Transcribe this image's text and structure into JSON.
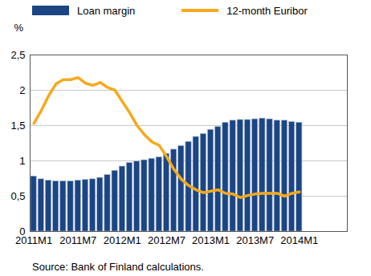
{
  "chart_data": {
    "type": "bar",
    "caption": "Source: Bank of Finland calculations.",
    "y_label": "%",
    "categories": [
      "2011M1",
      null,
      null,
      null,
      null,
      null,
      "2011M7",
      null,
      null,
      null,
      null,
      null,
      "2012M1",
      null,
      null,
      null,
      null,
      null,
      "2012M7",
      null,
      null,
      null,
      null,
      null,
      "2013M1",
      null,
      null,
      null,
      null,
      null,
      "2013M7",
      null,
      null,
      null,
      null,
      null,
      "2014M1",
      null,
      null,
      null,
      null,
      null,
      null
    ],
    "series": [
      {
        "name": "Loan margin",
        "type": "bar",
        "color": "#1b4584",
        "values": [
          0.78,
          0.74,
          0.72,
          0.71,
          0.71,
          0.71,
          0.72,
          0.73,
          0.74,
          0.76,
          0.8,
          0.86,
          0.92,
          0.97,
          0.99,
          1.01,
          1.03,
          1.05,
          1.1,
          1.16,
          1.21,
          1.27,
          1.34,
          1.38,
          1.44,
          1.48,
          1.54,
          1.57,
          1.58,
          1.58,
          1.59,
          1.6,
          1.59,
          1.57,
          1.57,
          1.55,
          1.54,
          null,
          null,
          null,
          null,
          null,
          null
        ]
      },
      {
        "name": "12-month Euribor",
        "type": "line",
        "color": "#f7a91c",
        "values": [
          1.53,
          1.71,
          1.92,
          2.09,
          2.15,
          2.15,
          2.18,
          2.1,
          2.07,
          2.11,
          2.04,
          2.0,
          1.84,
          1.68,
          1.5,
          1.37,
          1.27,
          1.22,
          1.06,
          0.88,
          0.74,
          0.65,
          0.59,
          0.55,
          0.57,
          0.59,
          0.54,
          0.53,
          0.48,
          0.51,
          0.53,
          0.54,
          0.54,
          0.54,
          0.5,
          0.54,
          0.56,
          null,
          null,
          null,
          null,
          null,
          null
        ]
      }
    ],
    "ylim": [
      0,
      2.5
    ],
    "yticks": [
      0,
      {
        "value": 0.5,
        "label": "0,5"
      },
      1,
      {
        "value": 1.5,
        "label": "1,5"
      },
      2,
      {
        "value": 2.5,
        "label": "2,5"
      }
    ],
    "grid": true
  }
}
